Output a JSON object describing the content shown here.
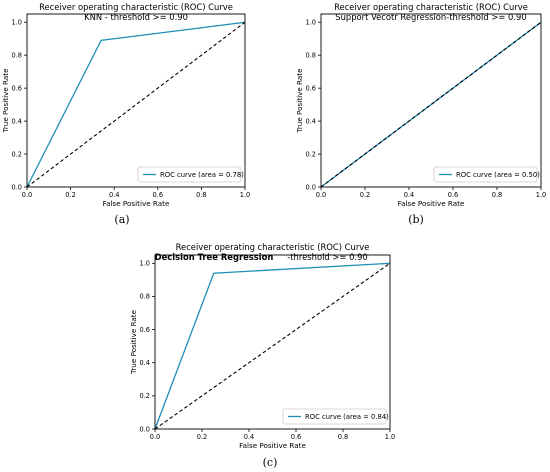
{
  "figure": {
    "panels": [
      {
        "caption": "(a)"
      },
      {
        "caption": "(b)"
      },
      {
        "caption": "(c)"
      }
    ]
  },
  "colors": {
    "roc": "#1f8fb5",
    "diagonal": "#000000",
    "axes": "#000000"
  },
  "chart_data": [
    {
      "type": "line",
      "title": "Receiver operating characteristic (ROC) Curve",
      "subtitle": "KNN - threshold >= 0.90",
      "subtitle_extra": "",
      "xlabel": "False Positive Rate",
      "ylabel": "True Positive Rate",
      "xlim": [
        0.0,
        1.0
      ],
      "ylim": [
        0.0,
        1.05
      ],
      "xticks": [
        "0.0",
        "0.2",
        "0.4",
        "0.6",
        "0.8",
        "1.0"
      ],
      "yticks": [
        "0.0",
        "0.2",
        "0.4",
        "0.6",
        "0.8",
        "1.0"
      ],
      "grid": false,
      "legend_position": "lower-right",
      "series": [
        {
          "name": "ROC curve (area = 0.78)",
          "x": [
            0.0,
            0.34,
            1.0
          ],
          "y": [
            0.0,
            0.89,
            1.0
          ],
          "style": "solid",
          "color": "#1f8fb5"
        },
        {
          "x": [
            0.0,
            1.0
          ],
          "y": [
            0.0,
            1.0
          ],
          "style": "dashed",
          "color": "#000000"
        }
      ]
    },
    {
      "type": "line",
      "title": "Receiver operating characteristic (ROC) Curve",
      "subtitle": "Support Vecotr Regression-threshold >= 0.90",
      "subtitle_extra": "",
      "xlabel": "False Positive Rate",
      "ylabel": "True Positive Rate",
      "xlim": [
        0.0,
        1.0
      ],
      "ylim": [
        0.0,
        1.05
      ],
      "xticks": [
        "0.0",
        "0.2",
        "0.4",
        "0.6",
        "0.8",
        "1.0"
      ],
      "yticks": [
        "0.0",
        "0.2",
        "0.4",
        "0.6",
        "0.8",
        "1.0"
      ],
      "grid": false,
      "legend_position": "lower-right",
      "series": [
        {
          "name": "ROC curve (area = 0.50)",
          "x": [
            0.0,
            1.0
          ],
          "y": [
            0.0,
            1.0
          ],
          "style": "solid",
          "color": "#1f8fb5"
        },
        {
          "x": [
            0.0,
            1.0
          ],
          "y": [
            0.0,
            1.0
          ],
          "style": "dashed",
          "color": "#000000"
        }
      ]
    },
    {
      "type": "line",
      "title": "Receiver operating characteristic (ROC) Curve",
      "subtitle": "Decision Tree Regression",
      "subtitle_extra": "-threshold >= 0.90",
      "xlabel": "False Positive Rate",
      "ylabel": "True Positive Rate",
      "xlim": [
        0.0,
        1.0
      ],
      "ylim": [
        0.0,
        1.05
      ],
      "xticks": [
        "0.0",
        "0.2",
        "0.4",
        "0.6",
        "0.8",
        "1.0"
      ],
      "yticks": [
        "0.0",
        "0.2",
        "0.4",
        "0.6",
        "0.8",
        "1.0"
      ],
      "grid": false,
      "legend_position": "lower-right",
      "series": [
        {
          "name": "ROC curve (area = 0.84)",
          "x": [
            0.0,
            0.25,
            1.0
          ],
          "y": [
            0.0,
            0.94,
            1.0
          ],
          "style": "solid",
          "color": "#1f8fb5"
        },
        {
          "x": [
            0.0,
            1.0
          ],
          "y": [
            0.0,
            1.0
          ],
          "style": "dashed",
          "color": "#000000"
        }
      ]
    }
  ]
}
